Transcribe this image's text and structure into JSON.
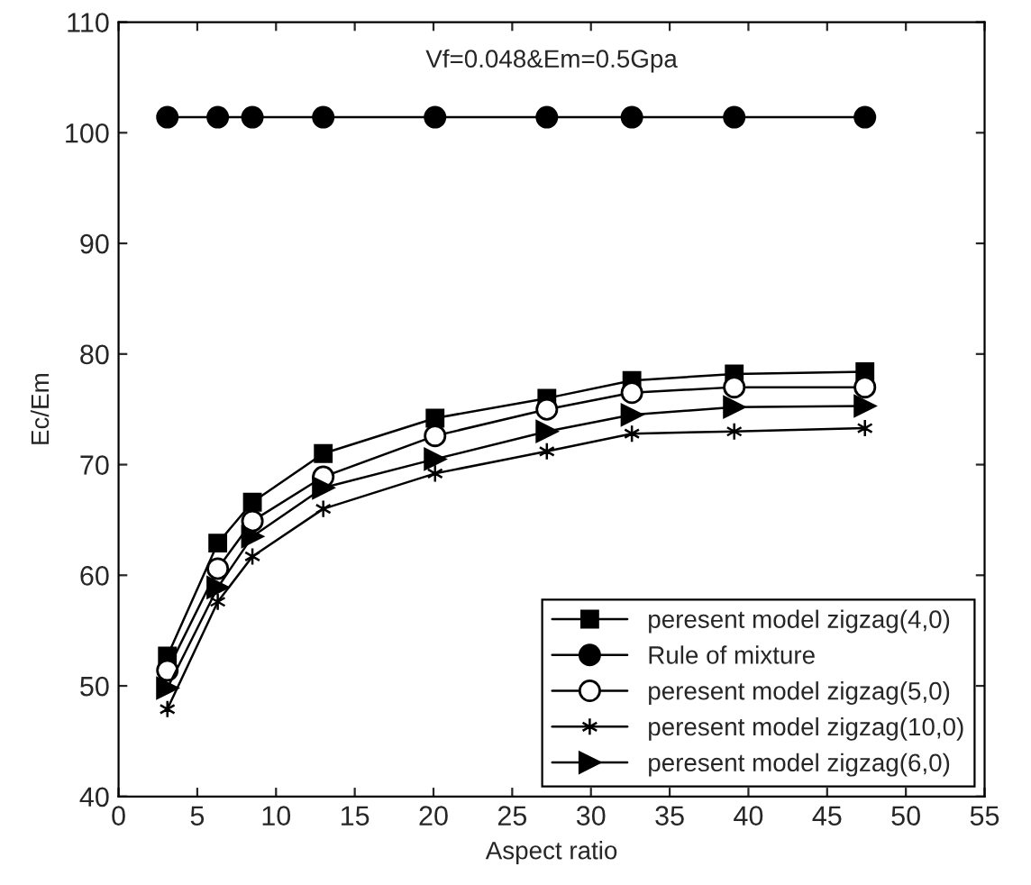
{
  "chart_data": {
    "type": "line",
    "xlabel": "Aspect ratio",
    "ylabel": "Ec/Em",
    "annotations": [
      "Vf=0.048&Em=0.5Gpa"
    ],
    "x": [
      3.1,
      6.3,
      8.5,
      13.0,
      20.1,
      27.2,
      32.6,
      39.1,
      47.4
    ],
    "series": [
      {
        "name": "peresent model zigzag(4,0)",
        "color": "#000000",
        "marker": "square",
        "values": [
          52.7,
          62.9,
          66.6,
          71.0,
          74.2,
          76.0,
          77.6,
          78.2,
          78.4
        ]
      },
      {
        "name": "Rule of mixture",
        "color": "#000000",
        "marker": "circle",
        "values": [
          101.4,
          101.4,
          101.4,
          101.4,
          101.4,
          101.4,
          101.4,
          101.4,
          101.4
        ]
      },
      {
        "name": "peresent model zigzag(5,0)",
        "color": "#000000",
        "marker": "circle",
        "values": [
          51.4,
          60.6,
          64.9,
          68.9,
          72.6,
          75.0,
          76.5,
          77.0,
          77.0
        ]
      },
      {
        "name": "peresent model zigzag(10,0)",
        "color": "#000000",
        "marker": "cross",
        "values": [
          47.9,
          57.6,
          61.7,
          66.0,
          69.2,
          71.2,
          72.8,
          73.0,
          73.3
        ]
      },
      {
        "name": "peresent model zigzag(6,0)",
        "color": "#000000",
        "marker": "triangle",
        "values": [
          49.8,
          58.9,
          63.5,
          67.9,
          70.5,
          73.0,
          74.5,
          75.2,
          75.3
        ]
      }
    ],
    "xlim": [
      0,
      55
    ],
    "xticks": [
      0,
      5,
      10,
      15,
      20,
      25,
      30,
      35,
      40,
      45,
      50,
      55
    ],
    "ylim": [
      40,
      110
    ],
    "yticks": [
      40,
      50,
      60,
      70,
      80,
      90,
      100,
      110
    ],
    "grid": false,
    "legend": "bottom right",
    "line_style": "solid"
  }
}
